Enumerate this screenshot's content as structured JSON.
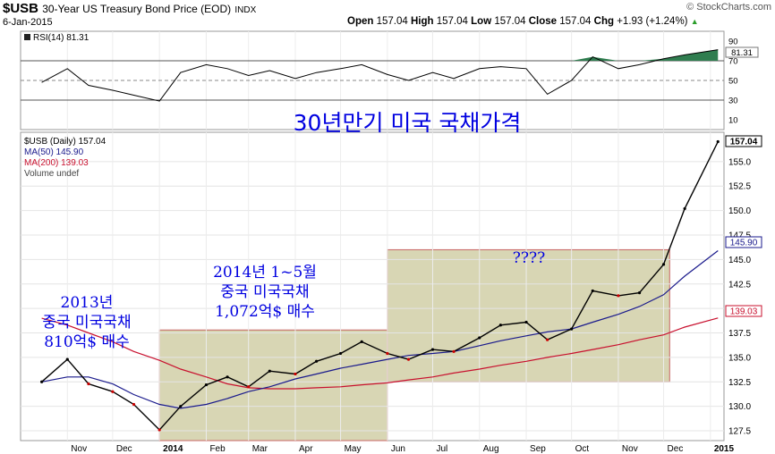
{
  "header": {
    "symbol": "$USB",
    "description": "30-Year US Treasury Bond Price (EOD)",
    "exchange": "INDX",
    "date": "6-Jan-2015",
    "brand": "© StockCharts.com",
    "open_label": "Open",
    "open": "157.04",
    "high_label": "High",
    "high": "157.04",
    "low_label": "Low",
    "low": "157.04",
    "close_label": "Close",
    "close": "157.04",
    "chg_label": "Chg",
    "chg": "+1.93 (+1.24%)"
  },
  "colors": {
    "price": "#000000",
    "price_down": "#cc0000",
    "ma50": "#1a1a8c",
    "ma200": "#c8102e",
    "shade": "#d8d6b4",
    "shade_border": "#c86464",
    "annotation": "#0000e0",
    "rsi_up": "#2f7d4f"
  },
  "rsi_panel": {
    "legend": "RSI(14) 81.31",
    "current_label": "81.31",
    "ticks": [
      "90",
      "70",
      "50",
      "30",
      "10"
    ],
    "levels": {
      "overbought": 70,
      "mid": 50,
      "oversold": 30
    }
  },
  "main_panel": {
    "title_annotation": "30년만기 미국 국채가격",
    "legend": [
      {
        "text": "$USB (Daily) 157.04",
        "color": "#000000"
      },
      {
        "text": "MA(50) 145.90",
        "color": "#1a1a8c"
      },
      {
        "text": "MA(200) 139.03",
        "color": "#c8102e"
      },
      {
        "text": "Volume undef",
        "color": "#000000"
      }
    ],
    "price_ticks": [
      "157.04",
      "155.0",
      "152.5",
      "150.0",
      "147.5",
      "145.0",
      "142.5",
      "140.0",
      "137.5",
      "135.0",
      "132.5",
      "130.0",
      "127.5"
    ],
    "last_price_box": "157.04",
    "ma50_box": "145.90",
    "ma200_box": "139.03",
    "x_ticks": [
      "Nov",
      "Dec",
      "2014",
      "Feb",
      "Mar",
      "Apr",
      "May",
      "Jun",
      "Jul",
      "Aug",
      "Sep",
      "Oct",
      "Nov",
      "Dec",
      "2015"
    ],
    "annotations": [
      {
        "lines": [
          "2013년",
          "중국 미국국채",
          "810억$ 매수"
        ]
      },
      {
        "lines": [
          "2014년 1~5월",
          "중국 미국국채",
          "1,072억$ 매수"
        ]
      },
      {
        "lines": [
          "????"
        ]
      }
    ]
  },
  "chart_data": {
    "type": "line",
    "title": "30-Year US Treasury Bond Price (EOD)",
    "ylim": [
      126.5,
      158
    ],
    "x": [
      "2013-10-15",
      "2013-11-01",
      "2013-11-15",
      "2013-12-01",
      "2013-12-15",
      "2014-01-01",
      "2014-01-15",
      "2014-02-01",
      "2014-02-15",
      "2014-03-01",
      "2014-03-15",
      "2014-04-01",
      "2014-04-15",
      "2014-05-01",
      "2014-05-15",
      "2014-06-01",
      "2014-06-15",
      "2014-07-01",
      "2014-07-15",
      "2014-08-01",
      "2014-08-15",
      "2014-09-01",
      "2014-09-15",
      "2014-10-01",
      "2014-10-15",
      "2014-11-01",
      "2014-11-15",
      "2014-12-01",
      "2014-12-15",
      "2015-01-06"
    ],
    "series": [
      {
        "name": "$USB (Daily)",
        "values": [
          132.5,
          134.8,
          132.3,
          131.5,
          130.2,
          127.6,
          130.0,
          132.2,
          133.0,
          132.0,
          133.6,
          133.3,
          134.6,
          135.4,
          136.6,
          135.4,
          134.8,
          135.8,
          135.6,
          137.0,
          138.3,
          138.6,
          136.8,
          137.9,
          141.8,
          141.3,
          141.6,
          144.5,
          150.2,
          157.04
        ]
      },
      {
        "name": "MA(50)",
        "values": [
          132.5,
          133.0,
          133.0,
          132.3,
          131.2,
          130.2,
          129.8,
          130.2,
          130.8,
          131.5,
          132.0,
          132.8,
          133.3,
          133.9,
          134.3,
          134.8,
          135.2,
          135.4,
          135.6,
          136.2,
          136.7,
          137.2,
          137.6,
          137.9,
          138.6,
          139.4,
          140.2,
          141.4,
          143.3,
          145.9
        ]
      },
      {
        "name": "MA(200)",
        "values": [
          139.0,
          138.3,
          137.5,
          136.6,
          135.6,
          134.7,
          133.8,
          133.0,
          132.3,
          131.9,
          131.8,
          131.8,
          131.9,
          132.0,
          132.2,
          132.4,
          132.7,
          133.0,
          133.4,
          133.8,
          134.2,
          134.6,
          135.0,
          135.4,
          135.8,
          136.3,
          136.8,
          137.3,
          138.1,
          139.03
        ]
      }
    ],
    "rsi": [
      48,
      62,
      45,
      40,
      35,
      29,
      58,
      66,
      62,
      55,
      60,
      52,
      58,
      62,
      66,
      56,
      50,
      58,
      52,
      62,
      64,
      62,
      36,
      50,
      74,
      62,
      66,
      72,
      76,
      81.31
    ],
    "shaded_regions": [
      {
        "from": "2014-01-01",
        "to": "2014-06-01",
        "ymin": 126.5,
        "ymax": 137.8
      },
      {
        "from": "2014-06-01",
        "to": "2014-12-05",
        "ymin": 132.5,
        "ymax": 146.0
      }
    ]
  }
}
